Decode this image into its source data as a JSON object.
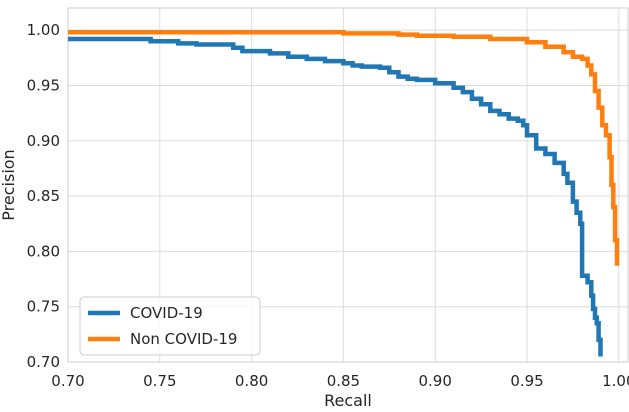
{
  "chart_data": {
    "type": "line",
    "title": "",
    "xlabel": "Recall",
    "ylabel": "Precision",
    "xlim": [
      0.7,
      1.005
    ],
    "ylim": [
      0.7,
      1.02
    ],
    "xticks": [
      "0.70",
      "0.75",
      "0.80",
      "0.85",
      "0.90",
      "0.95",
      "1.00"
    ],
    "yticks": [
      "0.70",
      "0.75",
      "0.80",
      "0.85",
      "0.90",
      "0.95",
      "1.00"
    ],
    "grid": true,
    "legend_position": "lower-left",
    "series": [
      {
        "name": "COVID-19",
        "color": "#1f77b4",
        "x": [
          0.7,
          0.74,
          0.745,
          0.76,
          0.77,
          0.79,
          0.795,
          0.81,
          0.82,
          0.83,
          0.84,
          0.85,
          0.855,
          0.86,
          0.87,
          0.875,
          0.88,
          0.885,
          0.89,
          0.9,
          0.91,
          0.915,
          0.92,
          0.925,
          0.93,
          0.935,
          0.94,
          0.945,
          0.948,
          0.95,
          0.955,
          0.96,
          0.965,
          0.97,
          0.972,
          0.975,
          0.977,
          0.979,
          0.98,
          0.983,
          0.985,
          0.986,
          0.987,
          0.988,
          0.989,
          0.99
        ],
        "y": [
          0.992,
          0.992,
          0.99,
          0.988,
          0.987,
          0.984,
          0.981,
          0.979,
          0.976,
          0.974,
          0.972,
          0.97,
          0.968,
          0.967,
          0.966,
          0.962,
          0.958,
          0.956,
          0.955,
          0.952,
          0.948,
          0.944,
          0.938,
          0.933,
          0.927,
          0.924,
          0.92,
          0.918,
          0.914,
          0.905,
          0.893,
          0.888,
          0.88,
          0.87,
          0.862,
          0.845,
          0.835,
          0.825,
          0.778,
          0.772,
          0.76,
          0.748,
          0.74,
          0.735,
          0.72,
          0.705
        ]
      },
      {
        "name": "Non COVID-19",
        "color": "#ff7f0e",
        "x": [
          0.7,
          0.8,
          0.85,
          0.88,
          0.89,
          0.91,
          0.93,
          0.95,
          0.96,
          0.97,
          0.975,
          0.98,
          0.983,
          0.985,
          0.987,
          0.989,
          0.991,
          0.993,
          0.995,
          0.996,
          0.997,
          0.998,
          0.999
        ],
        "y": [
          0.998,
          0.998,
          0.997,
          0.996,
          0.995,
          0.994,
          0.992,
          0.989,
          0.985,
          0.98,
          0.976,
          0.974,
          0.968,
          0.96,
          0.945,
          0.93,
          0.914,
          0.905,
          0.885,
          0.86,
          0.84,
          0.81,
          0.787
        ]
      }
    ]
  }
}
